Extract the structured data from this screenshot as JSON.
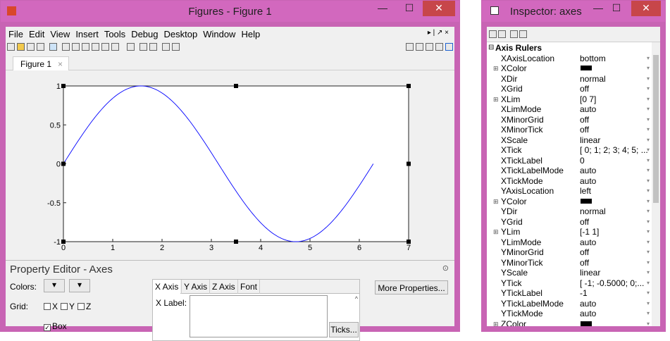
{
  "figure": {
    "title": "Figures - Figure 1",
    "menus": [
      "File",
      "Edit",
      "View",
      "Insert",
      "Tools",
      "Debug",
      "Desktop",
      "Window",
      "Help"
    ],
    "tab": "Figure 1",
    "plot": {
      "x_ticks": [
        "0",
        "1",
        "2",
        "3",
        "4",
        "5",
        "6",
        "7"
      ],
      "y_ticks": [
        "1",
        "0.5",
        "0",
        "-0.5",
        "-1"
      ]
    },
    "chart_data": {
      "type": "line",
      "xlim": [
        0,
        7
      ],
      "ylim": [
        -1,
        1
      ],
      "series": [
        {
          "function": "sin(x)",
          "x_range": [
            0,
            6.2832
          ]
        }
      ]
    },
    "prop_editor": {
      "title": "Property Editor - Axes",
      "colors_label": "Colors:",
      "grid_label": "Grid:",
      "grid_x": "X",
      "grid_y": "Y",
      "grid_z": "Z",
      "box_label": "Box",
      "tabs": [
        "X Axis",
        "Y Axis",
        "Z Axis",
        "Font"
      ],
      "xlabel_label": "X Label:",
      "ticks_button": "Ticks...",
      "more_button": "More Properties..."
    }
  },
  "inspector": {
    "title": "Inspector:  axes",
    "section": "Axis Rulers",
    "rows": [
      {
        "name": "XAxisLocation",
        "value": "bottom"
      },
      {
        "name": "XColor",
        "value": ""
      },
      {
        "name": "XDir",
        "value": "normal"
      },
      {
        "name": "XGrid",
        "value": "off"
      },
      {
        "name": "XLim",
        "value": "[0 7]"
      },
      {
        "name": "XLimMode",
        "value": "auto"
      },
      {
        "name": "XMinorGrid",
        "value": "off"
      },
      {
        "name": "XMinorTick",
        "value": "off"
      },
      {
        "name": "XScale",
        "value": "linear"
      },
      {
        "name": "XTick",
        "value": "[ 0; 1; 2; 3; 4; 5; ..."
      },
      {
        "name": "XTickLabel",
        "value": "0"
      },
      {
        "name": "XTickLabelMode",
        "value": "auto"
      },
      {
        "name": "XTickMode",
        "value": "auto"
      },
      {
        "name": "YAxisLocation",
        "value": "left"
      },
      {
        "name": "YColor",
        "value": ""
      },
      {
        "name": "YDir",
        "value": "normal"
      },
      {
        "name": "YGrid",
        "value": "off"
      },
      {
        "name": "YLim",
        "value": "[-1 1]"
      },
      {
        "name": "YLimMode",
        "value": "auto"
      },
      {
        "name": "YMinorGrid",
        "value": "off"
      },
      {
        "name": "YMinorTick",
        "value": "off"
      },
      {
        "name": "YScale",
        "value": "linear"
      },
      {
        "name": "YTick",
        "value": "[ -1; -0.5000; 0;..."
      },
      {
        "name": "YTickLabel",
        "value": "-1"
      },
      {
        "name": "YTickLabelMode",
        "value": "auto"
      },
      {
        "name": "YTickMode",
        "value": "auto"
      },
      {
        "name": "ZColor",
        "value": ""
      }
    ]
  }
}
